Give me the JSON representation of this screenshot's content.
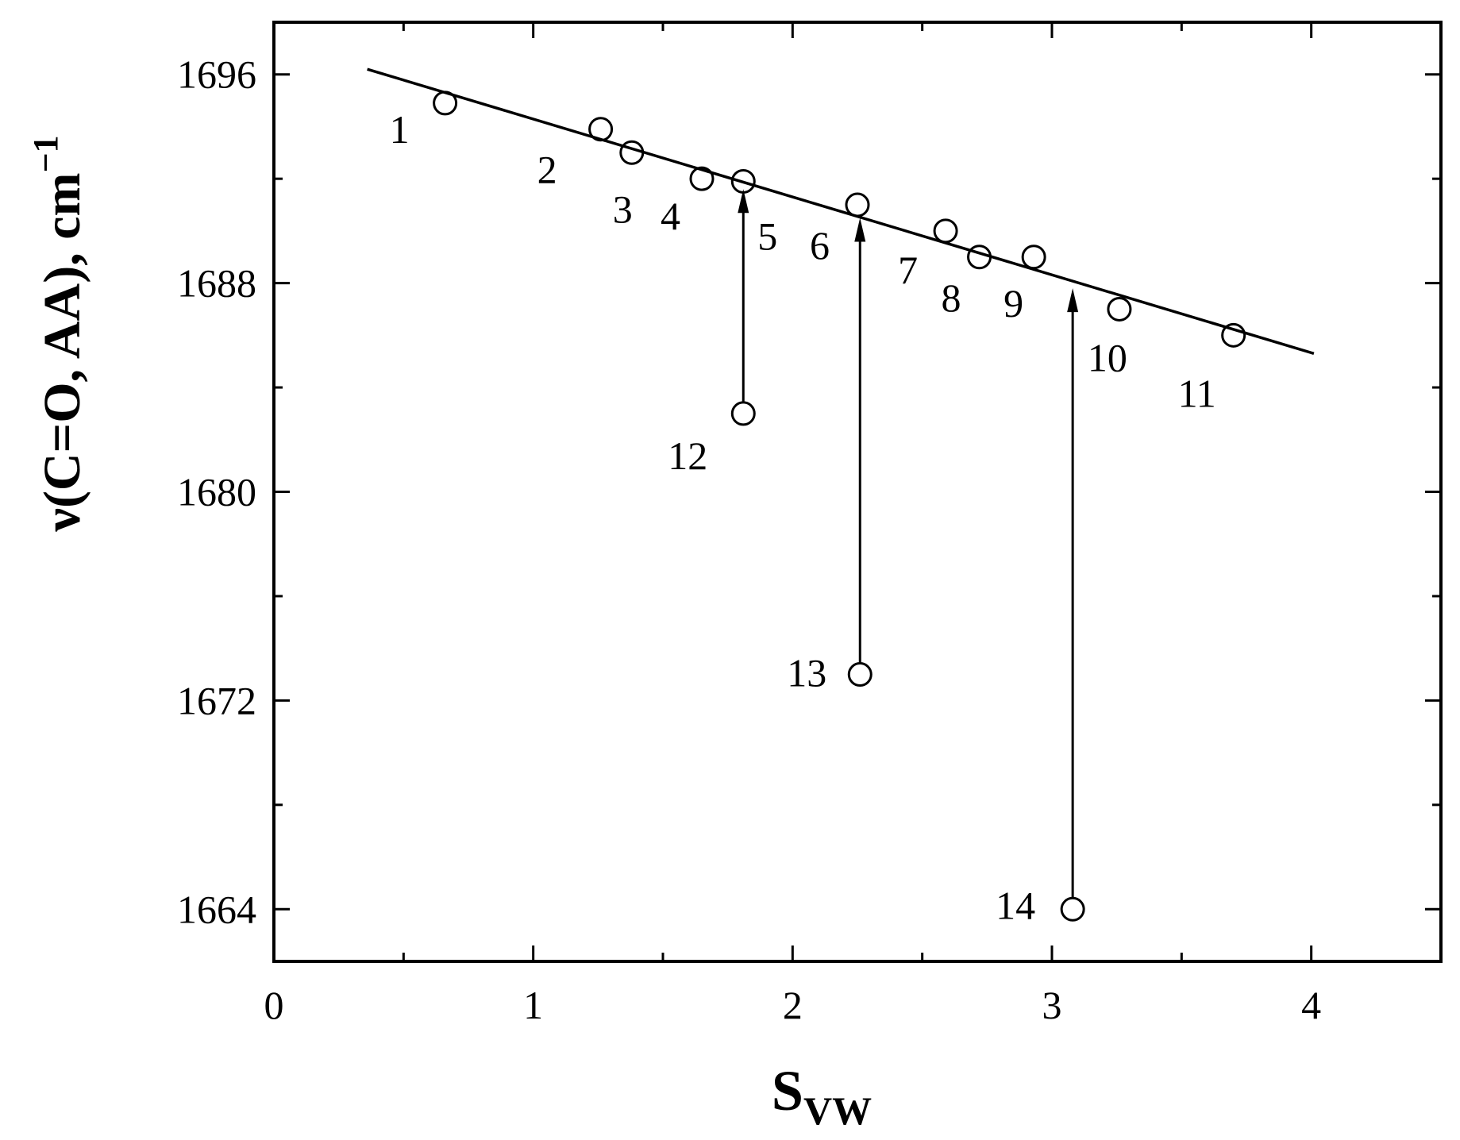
{
  "chart_data": {
    "type": "scatter",
    "xlabel": "S",
    "xlabel_subscript": "VW",
    "ylabel": "ν(C=O, AA), cm",
    "ylabel_superscript": "−1",
    "xlim": [
      0,
      4.5
    ],
    "ylim": [
      1662,
      1698
    ],
    "x_ticks": [
      0,
      1,
      2,
      3,
      4
    ],
    "y_ticks": [
      1664,
      1672,
      1680,
      1688,
      1696
    ],
    "x_minor_step": 0.5,
    "y_minor_step": 4,
    "points": [
      {
        "label": "1",
        "x": 0.66,
        "y": 1694.9
      },
      {
        "label": "2",
        "x": 1.26,
        "y": 1693.9
      },
      {
        "label": "3",
        "x": 1.38,
        "y": 1693.0
      },
      {
        "label": "4",
        "x": 1.65,
        "y": 1692.0
      },
      {
        "label": "5",
        "x": 1.81,
        "y": 1691.9
      },
      {
        "label": "6",
        "x": 2.25,
        "y": 1691.0
      },
      {
        "label": "7",
        "x": 2.59,
        "y": 1690.0
      },
      {
        "label": "8",
        "x": 2.72,
        "y": 1689.0
      },
      {
        "label": "9",
        "x": 2.93,
        "y": 1689.0
      },
      {
        "label": "10",
        "x": 3.26,
        "y": 1687.0
      },
      {
        "label": "11",
        "x": 3.7,
        "y": 1686.0
      },
      {
        "label": "12",
        "x": 1.81,
        "y": 1683.0
      },
      {
        "label": "13",
        "x": 2.26,
        "y": 1673.0
      },
      {
        "label": "14",
        "x": 3.08,
        "y": 1664.0
      }
    ],
    "fit_line": {
      "x": [
        0.36,
        4.01
      ],
      "y": [
        1696.2,
        1685.3
      ]
    },
    "arrows": [
      {
        "x": 1.81,
        "y_from": 1683.0,
        "y_to": 1691.6
      },
      {
        "x": 2.26,
        "y_from": 1673.0,
        "y_to": 1690.5
      },
      {
        "x": 3.08,
        "y_from": 1664.0,
        "y_to": 1687.8
      }
    ]
  }
}
